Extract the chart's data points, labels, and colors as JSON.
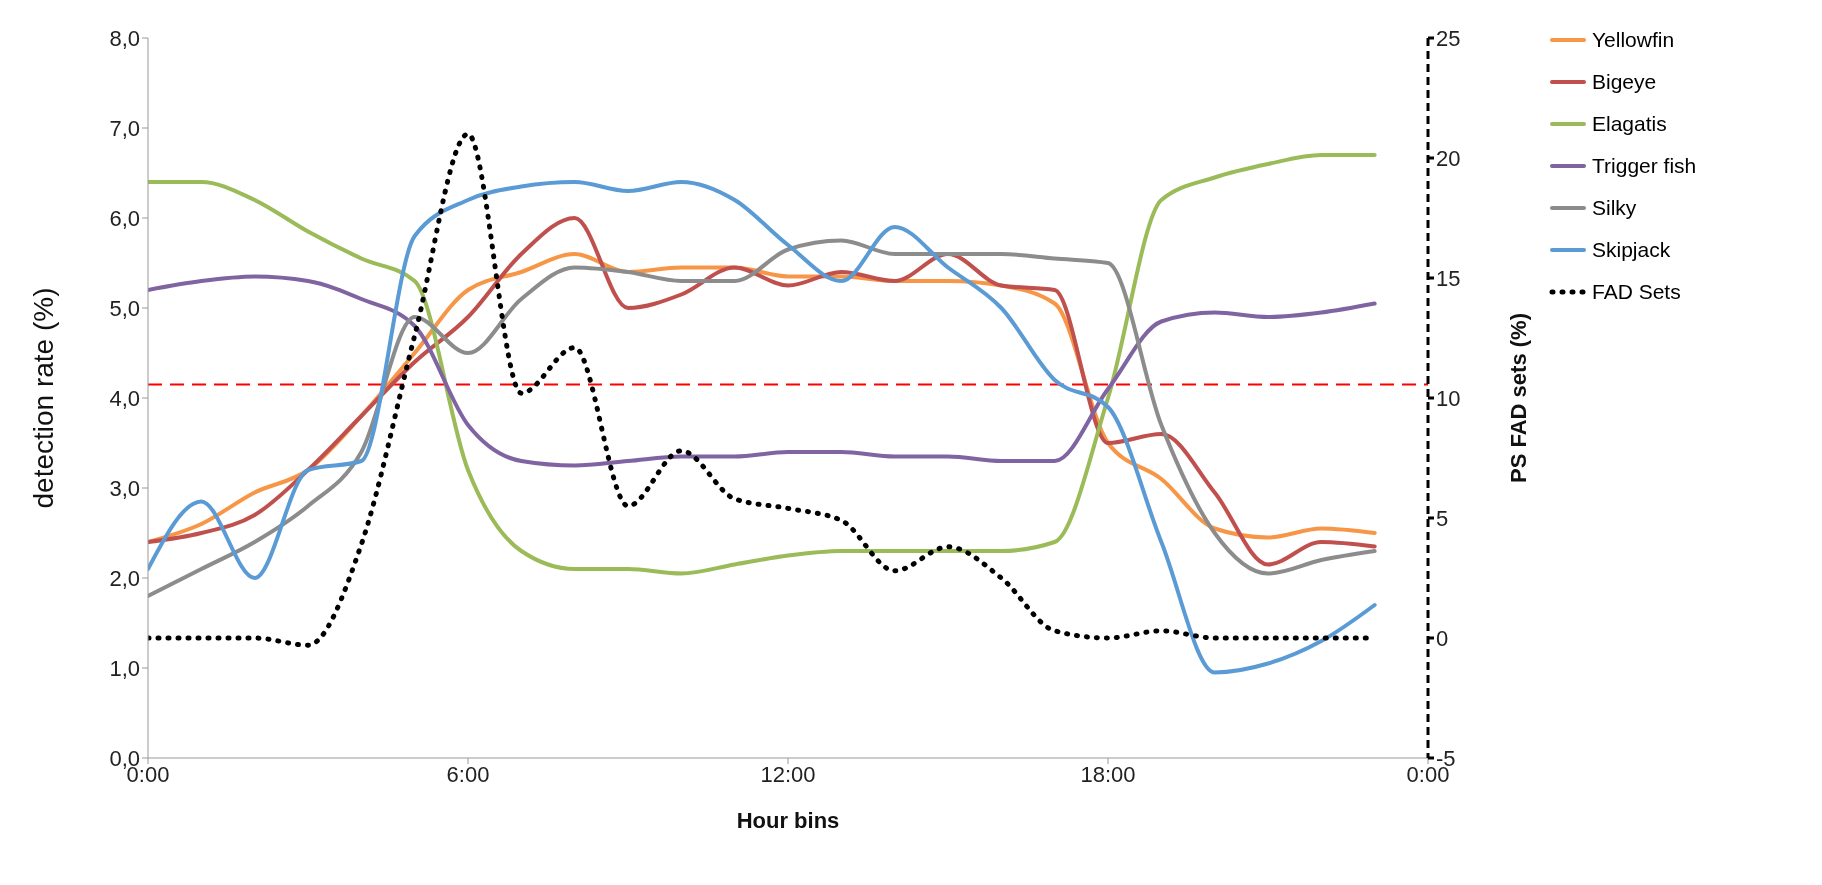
{
  "chart_data": {
    "type": "line",
    "xlabel": "Hour bins",
    "ylabel": "detection rate (%)",
    "y2label": "PS FAD sets (%)",
    "x": [
      0,
      1,
      2,
      3,
      4,
      5,
      6,
      7,
      8,
      9,
      10,
      11,
      12,
      13,
      14,
      15,
      16,
      17,
      18,
      19,
      20,
      21,
      22,
      23
    ],
    "xlim": [
      0,
      24
    ],
    "xticks": [
      {
        "value": 0,
        "label": "0:00"
      },
      {
        "value": 6,
        "label": "6:00"
      },
      {
        "value": 12,
        "label": "12:00"
      },
      {
        "value": 18,
        "label": "18:00"
      },
      {
        "value": 24,
        "label": "0:00"
      }
    ],
    "ylim": [
      0,
      8
    ],
    "yticks": [
      {
        "value": 0,
        "label": "0,0"
      },
      {
        "value": 1,
        "label": "1,0"
      },
      {
        "value": 2,
        "label": "2,0"
      },
      {
        "value": 3,
        "label": "3,0"
      },
      {
        "value": 4,
        "label": "4,0"
      },
      {
        "value": 5,
        "label": "5,0"
      },
      {
        "value": 6,
        "label": "6,0"
      },
      {
        "value": 7,
        "label": "7,0"
      },
      {
        "value": 8,
        "label": "8,0"
      }
    ],
    "y2lim": [
      -5,
      25
    ],
    "y2ticks": [
      -5,
      0,
      5,
      10,
      15,
      20,
      25
    ],
    "legend": "right",
    "marker": "none",
    "series": [
      {
        "name": "Yellowfin",
        "color": "#f79646",
        "values": [
          2.4,
          2.6,
          2.95,
          3.2,
          3.8,
          4.5,
          5.2,
          5.4,
          5.6,
          5.4,
          5.45,
          5.45,
          5.35,
          5.35,
          5.3,
          5.3,
          5.25,
          5.05,
          3.5,
          3.1,
          2.55,
          2.45,
          2.55,
          2.5
        ]
      },
      {
        "name": "Bigeye",
        "color": "#c0504d",
        "values": [
          2.4,
          2.5,
          2.7,
          3.2,
          3.8,
          4.4,
          4.9,
          5.6,
          6.0,
          5.0,
          5.15,
          5.45,
          5.25,
          5.4,
          5.3,
          5.6,
          5.25,
          5.2,
          3.5,
          3.6,
          2.95,
          2.15,
          2.4,
          2.35
        ]
      },
      {
        "name": "Elagatis",
        "color": "#9bbb59",
        "values": [
          6.4,
          6.4,
          6.2,
          5.85,
          5.55,
          5.3,
          3.2,
          2.3,
          2.1,
          2.1,
          2.05,
          2.15,
          2.25,
          2.3,
          2.3,
          2.3,
          2.3,
          2.4,
          4.0,
          6.2,
          6.45,
          6.6,
          6.7,
          6.7
        ]
      },
      {
        "name": "Trigger fish",
        "color": "#8064a2",
        "values": [
          5.2,
          5.3,
          5.35,
          5.3,
          5.1,
          4.8,
          3.7,
          3.3,
          3.25,
          3.3,
          3.35,
          3.35,
          3.4,
          3.4,
          3.35,
          3.35,
          3.3,
          3.3,
          4.1,
          4.85,
          4.95,
          4.9,
          4.95,
          5.05
        ]
      },
      {
        "name": "Silky",
        "color": "#8c8c8c",
        "values": [
          1.8,
          2.1,
          2.4,
          2.8,
          3.4,
          4.9,
          4.5,
          5.1,
          5.45,
          5.4,
          5.3,
          5.3,
          5.65,
          5.75,
          5.6,
          5.6,
          5.6,
          5.55,
          5.5,
          3.7,
          2.5,
          2.05,
          2.2,
          2.3
        ]
      },
      {
        "name": "Skipjack",
        "color": "#5b9bd5",
        "values": [
          2.1,
          2.85,
          2.0,
          3.2,
          3.3,
          5.8,
          6.2,
          6.35,
          6.4,
          6.3,
          6.4,
          6.2,
          5.7,
          5.3,
          5.9,
          5.45,
          5.0,
          4.2,
          3.9,
          2.4,
          0.95,
          1.05,
          1.3,
          1.7
        ]
      },
      {
        "name": "FAD Sets",
        "color": "#000000",
        "axis": "y2",
        "line_style": "dotted",
        "values": [
          0,
          0,
          0,
          -0.3,
          3.9,
          12.6,
          21,
          10.2,
          12.1,
          5.5,
          7.8,
          5.8,
          5.4,
          4.9,
          2.8,
          3.8,
          2.5,
          0.3,
          0,
          0.3,
          0,
          0,
          0,
          0
        ]
      }
    ],
    "ref_lines": [
      {
        "axis": "y",
        "value": 4.15,
        "color": "#ff0000",
        "line_style": "dashed"
      }
    ]
  }
}
